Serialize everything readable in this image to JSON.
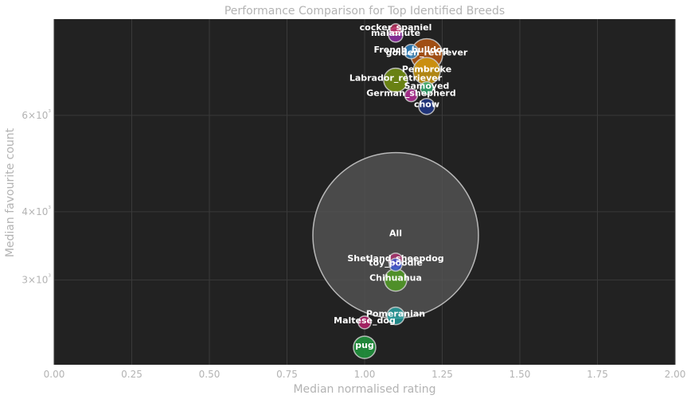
{
  "chart_data": {
    "type": "scatter",
    "title": "Performance Comparison for Top Identified Breeds",
    "xlabel": "Median normalised rating",
    "ylabel": "Median favourite count",
    "xlim": [
      0,
      2
    ],
    "ylim": [
      2100,
      9000
    ],
    "yscale": "log",
    "grid": true,
    "x_ticks": [
      "0.00",
      "0.25",
      "0.50",
      "0.75",
      "1.00",
      "1.25",
      "1.50",
      "1.75",
      "2.00"
    ],
    "y_ticks": [
      {
        "value": 3000,
        "label": "3×10³"
      },
      {
        "value": 4000,
        "label": "4×10³"
      },
      {
        "value": 6000,
        "label": "6×10³"
      }
    ],
    "colors": {
      "plot_background": "#222222",
      "grid": "#3a3a3a",
      "text": "#b3b3b3"
    },
    "points": [
      {
        "label": "cocker_spaniel",
        "x": 1.1,
        "y": 8620,
        "size": 7,
        "color": "#c03060"
      },
      {
        "label": "malamute",
        "x": 1.1,
        "y": 8420,
        "size": 9,
        "color": "#9b30b0"
      },
      {
        "label": "French_bulldog",
        "x": 1.15,
        "y": 7850,
        "size": 9,
        "color": "#2a8ad0"
      },
      {
        "label": "golden_retriever",
        "x": 1.2,
        "y": 7750,
        "size": 20,
        "color": "#c05a10"
      },
      {
        "label": "Pembroke",
        "x": 1.2,
        "y": 7230,
        "size": 17,
        "color": "#d4a010"
      },
      {
        "label": "Labrador_retriever",
        "x": 1.1,
        "y": 6960,
        "size": 15,
        "color": "#7a9a10"
      },
      {
        "label": "Samoyed",
        "x": 1.2,
        "y": 6730,
        "size": 8,
        "color": "#30b070"
      },
      {
        "label": "German_shepherd",
        "x": 1.15,
        "y": 6530,
        "size": 8,
        "color": "#c030a0"
      },
      {
        "label": "chow",
        "x": 1.2,
        "y": 6230,
        "size": 10,
        "color": "#203a90"
      },
      {
        "label": "All",
        "x": 1.1,
        "y": 3620,
        "size": 104,
        "color": "#555555"
      },
      {
        "label": "Shetland_sheepdog",
        "x": 1.1,
        "y": 3260,
        "size": 9,
        "color": "#b03070"
      },
      {
        "label": "toy_poodle",
        "x": 1.1,
        "y": 3200,
        "size": 8,
        "color": "#3050d0"
      },
      {
        "label": "Chihuahua",
        "x": 1.1,
        "y": 3000,
        "size": 14,
        "color": "#50a020"
      },
      {
        "label": "Pomeranian",
        "x": 1.1,
        "y": 2580,
        "size": 11,
        "color": "#20a0a0"
      },
      {
        "label": "Maltese_dog",
        "x": 1.0,
        "y": 2510,
        "size": 8,
        "color": "#c02070"
      },
      {
        "label": "pug",
        "x": 1.0,
        "y": 2260,
        "size": 14,
        "color": "#20a040"
      }
    ]
  }
}
